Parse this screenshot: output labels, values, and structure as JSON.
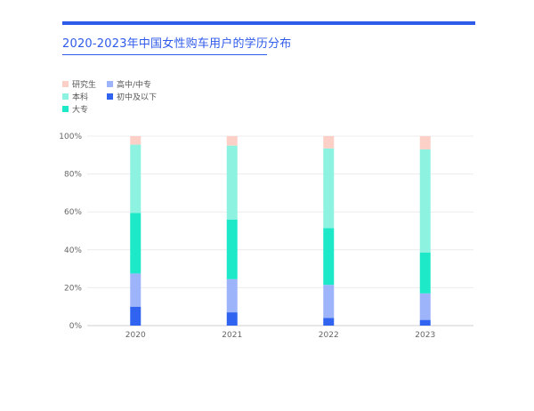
{
  "title": "2020-2023年中国女性购车用户的学历分布",
  "colors": {
    "accent": "#2f5bea"
  },
  "chart_data": {
    "type": "bar",
    "stacked": true,
    "title": "2020-2023年中国女性购车用户的学历分布",
    "xlabel": "",
    "ylabel": "",
    "categories": [
      "2020",
      "2021",
      "2022",
      "2023"
    ],
    "y_ticks": [
      "0%",
      "20%",
      "40%",
      "60%",
      "80%",
      "100%"
    ],
    "ylim": [
      0,
      100
    ],
    "grid": true,
    "legend_position": "top-left",
    "series": [
      {
        "name": "初中及以下",
        "color": "#2f63f0",
        "values": [
          10,
          7,
          4,
          3
        ]
      },
      {
        "name": "高中/中专",
        "color": "#9db4fa",
        "values": [
          17.5,
          17.5,
          17.5,
          14
        ]
      },
      {
        "name": "大专",
        "color": "#1de8c8",
        "values": [
          32,
          31.5,
          30,
          21.5
        ]
      },
      {
        "name": "本科",
        "color": "#8ef2e0",
        "values": [
          36,
          39,
          42,
          54.5
        ]
      },
      {
        "name": "研究生",
        "color": "#fcd0c7",
        "values": [
          4.5,
          5,
          6.5,
          7
        ]
      }
    ],
    "legend_order": [
      "研究生",
      "高中/中专",
      "本科",
      "初中及以下",
      "大专"
    ]
  }
}
